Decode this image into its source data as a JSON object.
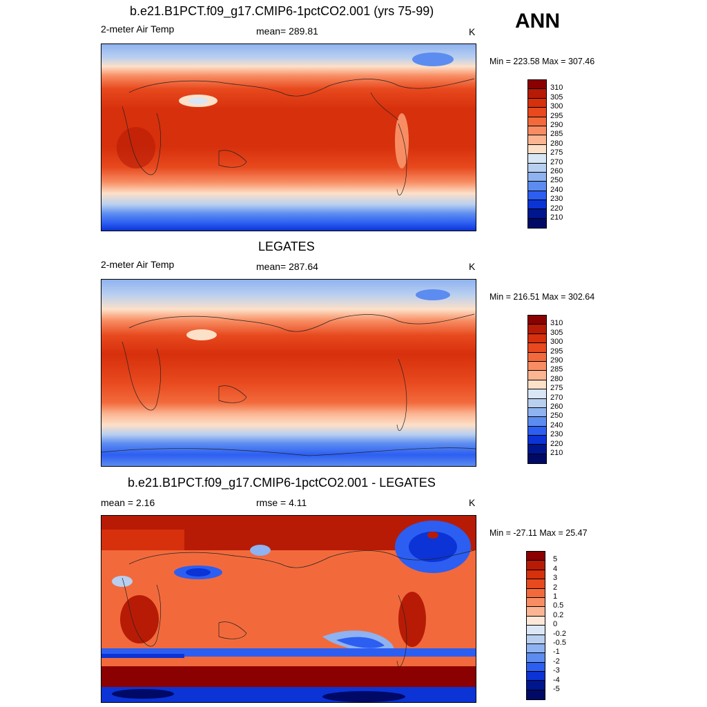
{
  "season": "ANN",
  "panels": [
    {
      "title": "b.e21.B1PCT.f09_g17.CMIP6-1pctCO2.001 (yrs 75-99)",
      "left_label": "2-meter Air Temp",
      "center_label": "mean= 289.81",
      "units": "K",
      "minmax": "Min = 223.58 Max = 307.46"
    },
    {
      "title": "LEGATES",
      "left_label": "2-meter Air Temp",
      "center_label": "mean= 287.64",
      "units": "K",
      "minmax": "Min = 216.51 Max = 302.64"
    },
    {
      "title": "b.e21.B1PCT.f09_g17.CMIP6-1pctCO2.001 - LEGATES",
      "left_label": "mean =   2.16",
      "center_label": "rmse =   4.11",
      "units": "K",
      "minmax": "Min = -27.11 Max =  25.47"
    }
  ],
  "colorbar_abs": {
    "labels": [
      "310",
      "305",
      "300",
      "295",
      "290",
      "285",
      "280",
      "275",
      "270",
      "260",
      "250",
      "240",
      "230",
      "220",
      "210"
    ],
    "colors": [
      "#8b0000",
      "#b71b05",
      "#d6300c",
      "#e8491e",
      "#f26a3c",
      "#f88d63",
      "#fbb592",
      "#fde0c8",
      "#d8e6f5",
      "#b8cff0",
      "#8fb2f0",
      "#5c8cf0",
      "#2c5ef2",
      "#0b33d6",
      "#00168f",
      "#000a66"
    ]
  },
  "colorbar_diff": {
    "labels": [
      "5",
      "4",
      "3",
      "2",
      "1",
      "0.5",
      "0.2",
      "0",
      "-0.2",
      "-0.5",
      "-1",
      "-2",
      "-3",
      "-4",
      "-5"
    ],
    "colors": [
      "#8b0000",
      "#b71b05",
      "#d6300c",
      "#e8491e",
      "#f26a3c",
      "#f88d63",
      "#fbb592",
      "#fde8d8",
      "#dbe7f7",
      "#b8cff0",
      "#8fb2f0",
      "#5c8cf0",
      "#2c5ef2",
      "#0b33d6",
      "#00168f",
      "#000a66"
    ]
  }
}
